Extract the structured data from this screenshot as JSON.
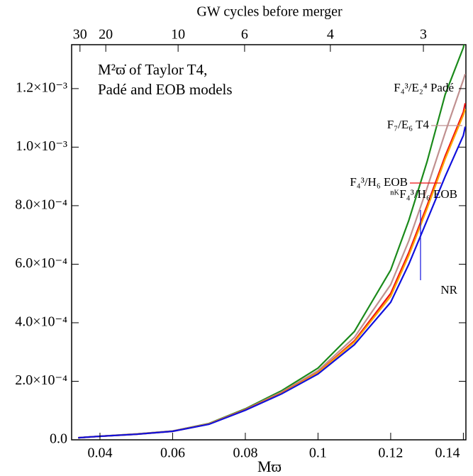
{
  "chart_data": {
    "type": "line",
    "title_lines": [
      "M²ϖ̇ of Taylor T4,",
      "Padé and EOB models"
    ],
    "xlabel": "Mϖ",
    "top_axis": {
      "label": "GW cycles before merger",
      "ticks": [
        {
          "value": 0.0345,
          "label": "30"
        },
        {
          "value": 0.0416,
          "label": "20"
        },
        {
          "value": 0.0615,
          "label": "10"
        },
        {
          "value": 0.0798,
          "label": "6"
        },
        {
          "value": 0.1034,
          "label": "4"
        },
        {
          "value": 0.129,
          "label": "3"
        }
      ]
    },
    "x": [
      0.034,
      0.04,
      0.05,
      0.06,
      0.07,
      0.08,
      0.09,
      0.1,
      0.11,
      0.12,
      0.125,
      0.13,
      0.135,
      0.14,
      0.1405
    ],
    "series": [
      {
        "name": "F₄³/E₂⁴ Padé",
        "color": "#1a8a1a",
        "values": [
          7e-06,
          1.2e-05,
          2e-05,
          3e-05,
          5.6e-05,
          0.000106,
          0.000168,
          0.000245,
          0.00037,
          0.00058,
          0.00075,
          0.00095,
          0.00118,
          0.00134,
          0.00137
        ]
      },
      {
        "name": "F₇/E₆ T4",
        "color": "#c09090",
        "values": [
          7e-06,
          1.2e-05,
          2e-05,
          3e-05,
          5.5e-05,
          0.000104,
          0.000163,
          0.000236,
          0.00035,
          0.00053,
          0.00068,
          0.00086,
          0.00105,
          0.00123,
          0.00125
        ]
      },
      {
        "name": "F₄³/H₆ EOB",
        "color": "#ee1111",
        "values": [
          7e-06,
          1.2e-05,
          1.9e-05,
          2.9e-05,
          5.4e-05,
          0.000103,
          0.00016,
          0.00023,
          0.000338,
          0.0005,
          0.00064,
          0.0008,
          0.00097,
          0.00112,
          0.00115
        ]
      },
      {
        "name": "ⁿᴷF₄³/H₆ EOB",
        "color": "#ffa500",
        "values": [
          7e-06,
          1.2e-05,
          1.9e-05,
          2.9e-05,
          5.4e-05,
          0.000102,
          0.000159,
          0.000229,
          0.000334,
          0.00049,
          0.00063,
          0.00079,
          0.00096,
          0.00111,
          0.00113
        ]
      },
      {
        "name": "NR",
        "color": "#1010dd",
        "values": [
          7e-06,
          1.2e-05,
          1.9e-05,
          2.9e-05,
          5.3e-05,
          0.000101,
          0.000157,
          0.000225,
          0.000325,
          0.00047,
          0.0006,
          0.00075,
          0.0009,
          0.00104,
          0.00107
        ]
      }
    ],
    "xlim": [
      0.0322,
      0.1407
    ],
    "ylim": [
      0,
      0.00135
    ],
    "xticks": [
      0.04,
      0.06,
      0.08,
      0.1,
      0.12,
      0.14
    ],
    "yticks": [
      {
        "value": 0,
        "label": "0.0"
      },
      {
        "value": 0.0002,
        "label": "2.0×10⁻⁴"
      },
      {
        "value": 0.0004,
        "label": "4.0×10⁻⁴"
      },
      {
        "value": 0.0006,
        "label": "6.0×10⁻⁴"
      },
      {
        "value": 0.0008,
        "label": "8.0×10⁻⁴"
      },
      {
        "value": 0.001,
        "label": "1.0×10⁻³"
      },
      {
        "value": 0.0012,
        "label": "1.2×10⁻³"
      }
    ]
  }
}
